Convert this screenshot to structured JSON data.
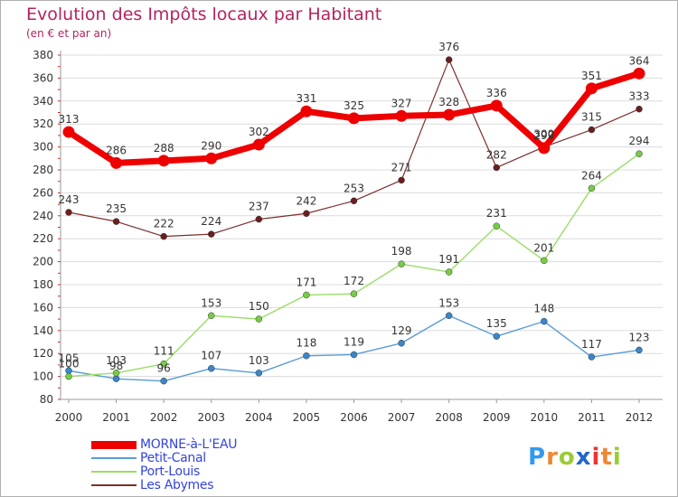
{
  "header": {
    "title": "Evolution des Impôts locaux par Habitant",
    "subtitle": "(en € et par an)"
  },
  "chart_data": {
    "type": "line",
    "title": "Evolution des Impôts locaux par Habitant",
    "subtitle": "(en € et par an)",
    "xlabel": "",
    "ylabel": "",
    "x": [
      "2000",
      "2001",
      "2002",
      "2003",
      "2004",
      "2005",
      "2006",
      "2007",
      "2008",
      "2009",
      "2010",
      "2011",
      "2012"
    ],
    "ylim": [
      80,
      380
    ],
    "yticks": [
      80,
      100,
      120,
      140,
      160,
      180,
      200,
      220,
      240,
      260,
      280,
      300,
      320,
      340,
      360,
      380
    ],
    "grid": true,
    "legend_position": "bottom-left",
    "series": [
      {
        "name": "MORNE-à-L'EAU",
        "color": "#ee0000",
        "marker": "#ee0000",
        "width": 7,
        "values": [
          313,
          286,
          288,
          290,
          302,
          331,
          325,
          327,
          328,
          336,
          299,
          351,
          364
        ]
      },
      {
        "name": "Petit-Canal",
        "color": "#5b9bd5",
        "marker": "#3a86c8",
        "width": 1.4,
        "values": [
          105,
          98,
          96,
          107,
          103,
          118,
          119,
          129,
          153,
          135,
          148,
          117,
          123
        ]
      },
      {
        "name": "Port-Louis",
        "color": "#99dd66",
        "marker": "#77cc44",
        "width": 1.4,
        "values": [
          100,
          103,
          111,
          153,
          150,
          171,
          172,
          198,
          191,
          231,
          201,
          264,
          294
        ]
      },
      {
        "name": "Les Abymes",
        "color": "#7a2f2f",
        "marker": "#6a1f1f",
        "width": 1.2,
        "values": [
          243,
          235,
          222,
          224,
          237,
          242,
          253,
          271,
          376,
          282,
          300,
          315,
          333
        ]
      }
    ]
  },
  "logo": {
    "letters": [
      "P",
      "r",
      "o",
      "x",
      "i",
      "t",
      "i"
    ],
    "colors": [
      "#3399ee",
      "#ee8833",
      "#99cc33",
      "#2266cc",
      "#ee3333",
      "#ee8833",
      "#99cc33"
    ]
  }
}
